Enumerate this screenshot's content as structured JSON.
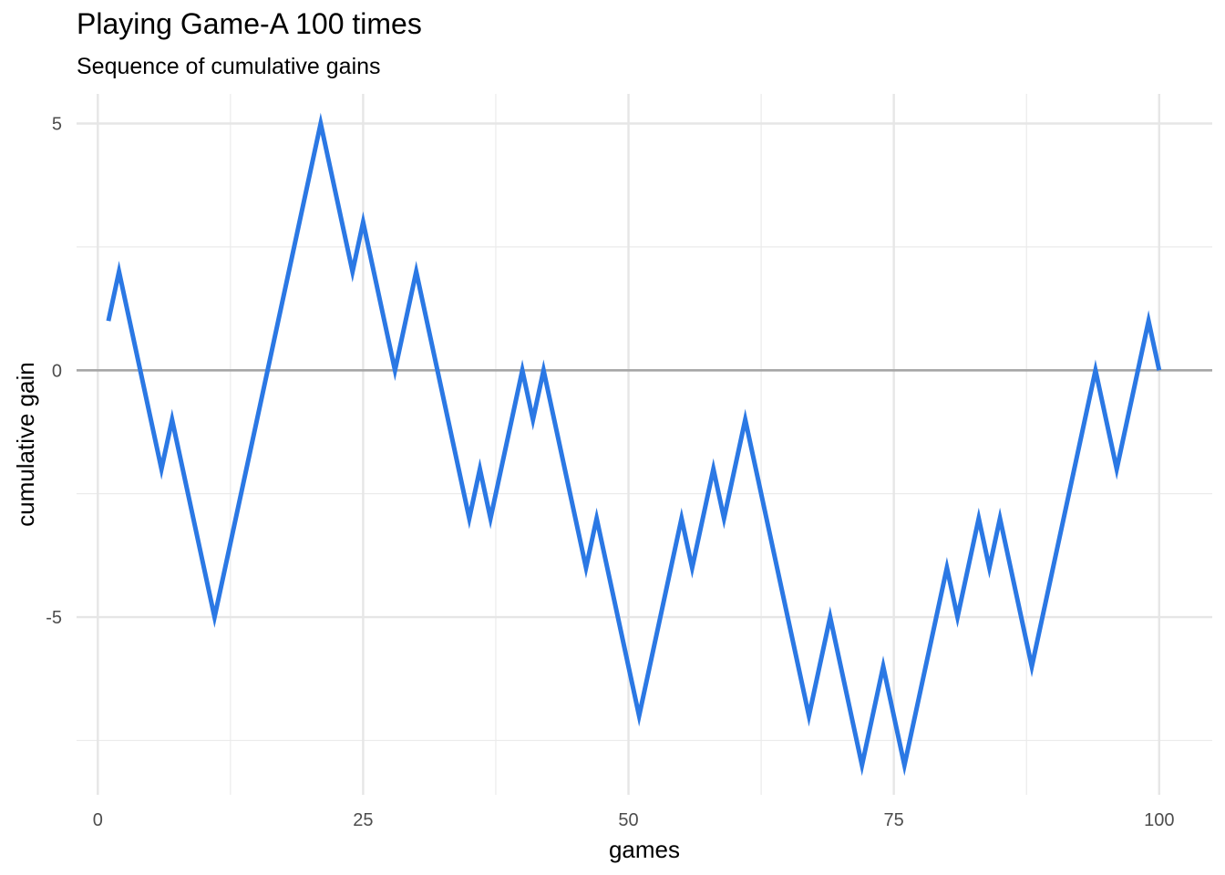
{
  "chart_data": {
    "type": "line",
    "title": "Playing Game-A 100 times",
    "subtitle": "Sequence of cumulative gains",
    "xlabel": "games",
    "ylabel": "cumulative gain",
    "xlim": [
      -2,
      105
    ],
    "ylim": [
      -8.6,
      5.6
    ],
    "x_ticks": [
      0,
      25,
      50,
      75,
      100
    ],
    "x_minor_ticks": [
      12.5,
      37.5,
      62.5,
      87.5
    ],
    "y_ticks": [
      5,
      0,
      -5
    ],
    "y_minor_ticks": [
      2.5,
      -2.5,
      -7.5
    ],
    "grid": true,
    "reference_line": {
      "y": 0,
      "color": "#a6a6a6"
    },
    "series": [
      {
        "color": "#2b78e4",
        "x": [
          1,
          2,
          3,
          4,
          5,
          6,
          7,
          8,
          9,
          10,
          11,
          12,
          13,
          14,
          15,
          16,
          17,
          18,
          19,
          20,
          21,
          22,
          23,
          24,
          25,
          26,
          27,
          28,
          29,
          30,
          31,
          32,
          33,
          34,
          35,
          36,
          37,
          38,
          39,
          40,
          41,
          42,
          43,
          44,
          45,
          46,
          47,
          48,
          49,
          50,
          51,
          52,
          53,
          54,
          55,
          56,
          57,
          58,
          59,
          60,
          61,
          62,
          63,
          64,
          65,
          66,
          67,
          68,
          69,
          70,
          71,
          72,
          73,
          74,
          75,
          76,
          77,
          78,
          79,
          80,
          81,
          82,
          83,
          84,
          85,
          86,
          87,
          88,
          89,
          90,
          91,
          92,
          93,
          94,
          95,
          96,
          97,
          98,
          99,
          100
        ],
        "values": [
          1,
          2,
          1,
          0,
          -1,
          -2,
          -1,
          -2,
          -3,
          -4,
          -5,
          -4,
          -3,
          -2,
          -1,
          0,
          1,
          2,
          3,
          4,
          5,
          4,
          3,
          2,
          3,
          2,
          1,
          0,
          1,
          2,
          1,
          0,
          -1,
          -2,
          -3,
          -2,
          -3,
          -2,
          -1,
          0,
          -1,
          0,
          -1,
          -2,
          -3,
          -4,
          -3,
          -4,
          -5,
          -6,
          -7,
          -6,
          -5,
          -4,
          -3,
          -4,
          -3,
          -2,
          -3,
          -2,
          -1,
          -2,
          -3,
          -4,
          -5,
          -6,
          -7,
          -6,
          -5,
          -6,
          -7,
          -8,
          -7,
          -6,
          -7,
          -8,
          -7,
          -6,
          -5,
          -4,
          -5,
          -4,
          -3,
          -4,
          -3,
          -4,
          -5,
          -6,
          -5,
          -4,
          -3,
          -2,
          -1,
          0,
          -1,
          -2,
          -1,
          0,
          1,
          0
        ]
      }
    ]
  }
}
